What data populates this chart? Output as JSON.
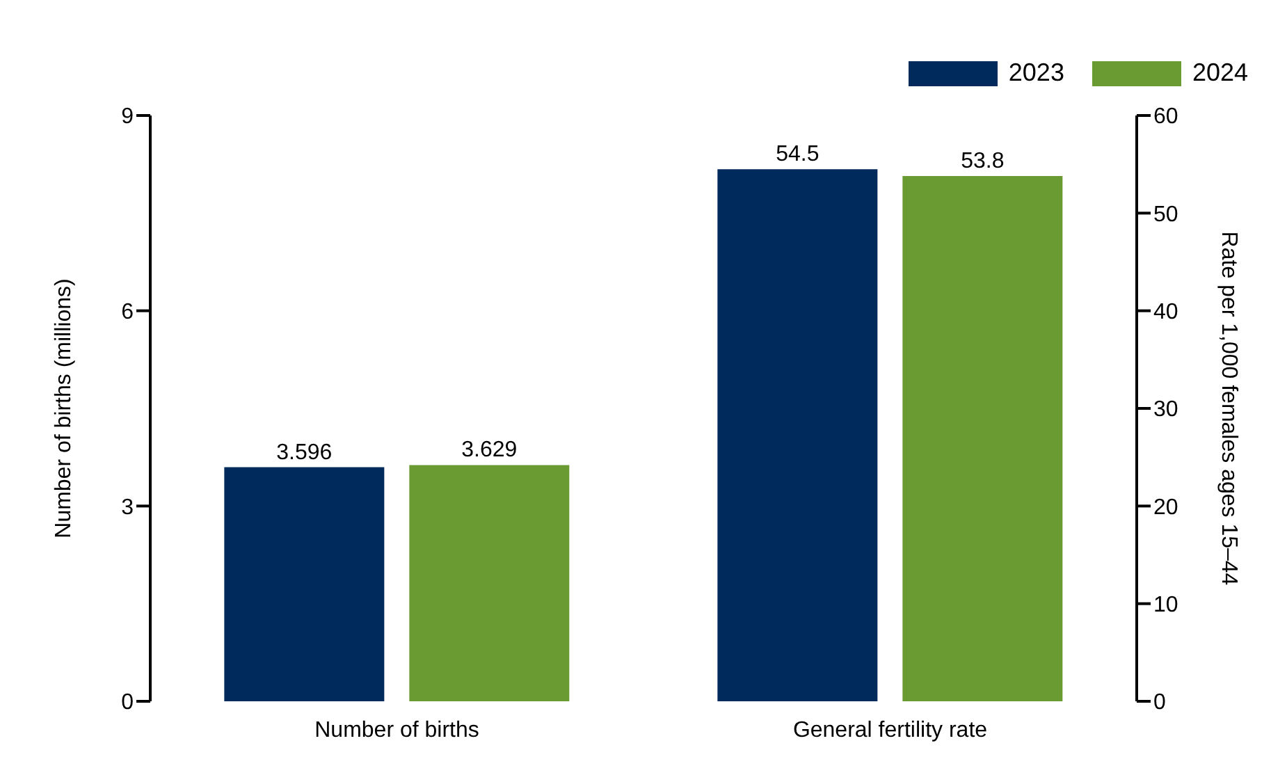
{
  "chart_data": {
    "type": "bar",
    "categories": [
      "Number of births",
      "General fertility rate"
    ],
    "series": [
      {
        "name": "2023",
        "color": "#002a5c",
        "values": [
          3.596,
          null
        ]
      },
      {
        "name": "2024",
        "color": "#6a9a32",
        "values": [
          3.629,
          null
        ]
      },
      {
        "color": "#002a5c",
        "values": [
          null,
          54.5
        ],
        "axis": "y2"
      },
      {
        "color": "#6a9a32",
        "values": [
          null,
          53.8
        ],
        "axis": "y2"
      }
    ],
    "ylabel": "Number of births (millions)",
    "y2label": "Rate per 1,000 females ages 15–44",
    "ylim": [
      0,
      9
    ],
    "yticks": [
      0,
      3,
      6,
      9
    ],
    "y2lim": [
      0,
      60
    ],
    "y2ticks": [
      0,
      10,
      20,
      30,
      40,
      50,
      60
    ],
    "data_labels": true,
    "legend": "top right",
    "grid": false
  }
}
